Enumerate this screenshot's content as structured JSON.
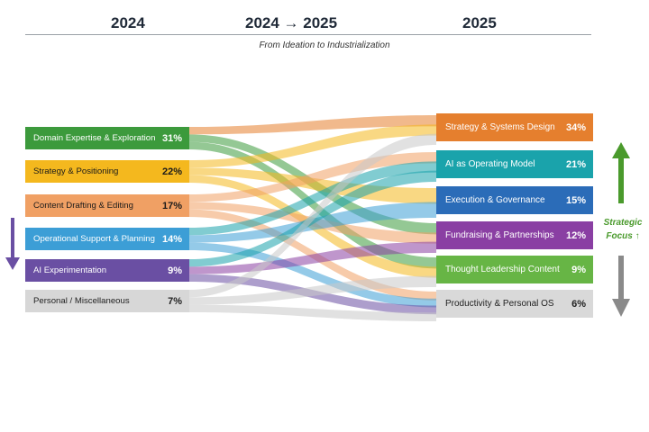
{
  "header": {
    "left_year": "2024",
    "middle": "2024 → 2025",
    "right_year": "2025",
    "subtitle": "From Ideation to Industrialization"
  },
  "left_categories": [
    {
      "label": "Domain Expertise & Exploration",
      "pct": "31%",
      "value": 31,
      "color": "#3c9a3c",
      "text_color": "#ffffff"
    },
    {
      "label": "Strategy & Positioning",
      "pct": "22%",
      "value": 22,
      "color": "#f4b81e",
      "text_color": "#1a1a1a"
    },
    {
      "label": "Content Drafting & Editing",
      "pct": "17%",
      "value": 17,
      "color": "#f0a064",
      "text_color": "#1a1a1a"
    },
    {
      "label": "Operational Support & Planning",
      "pct": "14%",
      "value": 14,
      "color": "#3c9ed6",
      "text_color": "#ffffff"
    },
    {
      "label": "AI Experimentation",
      "pct": "9%",
      "value": 9,
      "color": "#6a4fa3",
      "text_color": "#ffffff"
    },
    {
      "label": "Personal / Miscellaneous",
      "pct": "7%",
      "value": 7,
      "color": "#d7d7d7",
      "text_color": "#222222"
    }
  ],
  "right_categories": [
    {
      "label": "Strategy & Systems Design",
      "pct": "34%",
      "value": 34,
      "color": "#e57f2e",
      "text_color": "#ffffff"
    },
    {
      "label": "AI as Operating Model",
      "pct": "21%",
      "value": 21,
      "color": "#1aa3ab",
      "text_color": "#ffffff"
    },
    {
      "label": "Execution & Governance",
      "pct": "15%",
      "value": 15,
      "color": "#2b6cb8",
      "text_color": "#ffffff"
    },
    {
      "label": "Fundraising & Partnerships",
      "pct": "12%",
      "value": 12,
      "color": "#8a3fa3",
      "text_color": "#ffffff"
    },
    {
      "label": "Thought Leadership Content",
      "pct": "9%",
      "value": 9,
      "color": "#67b545",
      "text_color": "#ffffff"
    },
    {
      "label": "Productivity & Personal OS",
      "pct": "6%",
      "value": 6,
      "color": "#d9d9d9",
      "text_color": "#222222"
    }
  ],
  "flows": [
    {
      "from": 0,
      "to": 0,
      "color": "#e57f2e"
    },
    {
      "from": 0,
      "to": 3,
      "color": "#3c9a3c"
    },
    {
      "from": 0,
      "to": 4,
      "color": "#3c9a3c"
    },
    {
      "from": 1,
      "to": 0,
      "color": "#f4b81e"
    },
    {
      "from": 1,
      "to": 2,
      "color": "#f4b81e"
    },
    {
      "from": 1,
      "to": 4,
      "color": "#f4b81e"
    },
    {
      "from": 2,
      "to": 1,
      "color": "#f0a064"
    },
    {
      "from": 2,
      "to": 3,
      "color": "#f0a064"
    },
    {
      "from": 2,
      "to": 5,
      "color": "#f0a064"
    },
    {
      "from": 3,
      "to": 1,
      "color": "#1aa3ab"
    },
    {
      "from": 3,
      "to": 2,
      "color": "#3c9ed6"
    },
    {
      "from": 3,
      "to": 5,
      "color": "#3c9ed6"
    },
    {
      "from": 4,
      "to": 1,
      "color": "#1aa3ab"
    },
    {
      "from": 4,
      "to": 3,
      "color": "#8a3fa3"
    },
    {
      "from": 4,
      "to": 5,
      "color": "#6a4fa3"
    },
    {
      "from": 5,
      "to": 0,
      "color": "#c8c8c8"
    },
    {
      "from": 5,
      "to": 4,
      "color": "#c8c8c8"
    },
    {
      "from": 5,
      "to": 5,
      "color": "#c8c8c8"
    }
  ],
  "side": {
    "strategic_focus": "Strategic Focus ↑",
    "colors": {
      "up_arrow": "#4a9a2c",
      "down_arrow": "#8a8a8a",
      "left_arrow": "#6a4fa3"
    }
  }
}
